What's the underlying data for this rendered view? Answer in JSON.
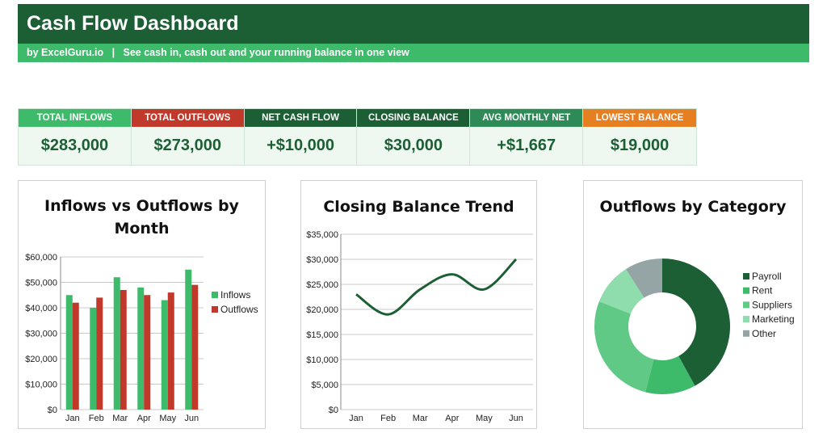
{
  "header": {
    "title": "Cash Flow Dashboard",
    "subtitle": "by ExcelGuru.io   |   See cash in, cash out and your running balance in one view"
  },
  "kpis": [
    {
      "label": "TOTAL INFLOWS",
      "value": "$283,000",
      "color": "#3dba6a"
    },
    {
      "label": "TOTAL OUTFLOWS",
      "value": "$273,000",
      "color": "#c0392b"
    },
    {
      "label": "NET CASH FLOW",
      "value": "+$10,000",
      "color": "#1c5f35"
    },
    {
      "label": "CLOSING BALANCE",
      "value": "$30,000",
      "color": "#1c5f35"
    },
    {
      "label": "AVG MONTHLY NET",
      "value": "+$1,667",
      "color": "#2e8b57"
    },
    {
      "label": "LOWEST BALANCE",
      "value": "$19,000",
      "color": "#e67e22"
    }
  ],
  "chart_data": [
    {
      "type": "bar",
      "title": "Inflows vs Outflows by Month",
      "categories": [
        "Jan",
        "Feb",
        "Mar",
        "Apr",
        "May",
        "Jun"
      ],
      "series": [
        {
          "name": "Inflows",
          "values": [
            45000,
            40000,
            52000,
            48000,
            43000,
            55000
          ],
          "color": "#3dba6a"
        },
        {
          "name": "Outflows",
          "values": [
            42000,
            44000,
            47000,
            45000,
            46000,
            49000
          ],
          "color": "#c0392b"
        }
      ],
      "ylim": [
        0,
        60000
      ],
      "yticks": [
        "$0",
        "$10,000",
        "$20,000",
        "$30,000",
        "$40,000",
        "$50,000",
        "$60,000"
      ],
      "legend": "right",
      "grid": true
    },
    {
      "type": "line",
      "title": "Closing Balance Trend",
      "categories": [
        "Jan",
        "Feb",
        "Mar",
        "Apr",
        "May",
        "Jun"
      ],
      "series": [
        {
          "values": [
            23000,
            19000,
            24000,
            27000,
            24000,
            30000
          ],
          "color": "#1c5f35"
        }
      ],
      "ylim": [
        0,
        35000
      ],
      "yticks": [
        "$0",
        "$5,000",
        "$10,000",
        "$15,000",
        "$20,000",
        "$25,000",
        "$30,000",
        "$35,000"
      ],
      "grid": true
    },
    {
      "type": "pie",
      "title": "Outflows by Category",
      "labels": [
        "Payroll",
        "Rent",
        "Suppliers",
        "Marketing",
        "Other"
      ],
      "values": [
        42,
        12,
        27,
        10,
        9
      ],
      "colors": [
        "#1c5f35",
        "#3dba6a",
        "#5fc985",
        "#8fdcac",
        "#95a5a6"
      ],
      "legend": "right"
    }
  ]
}
